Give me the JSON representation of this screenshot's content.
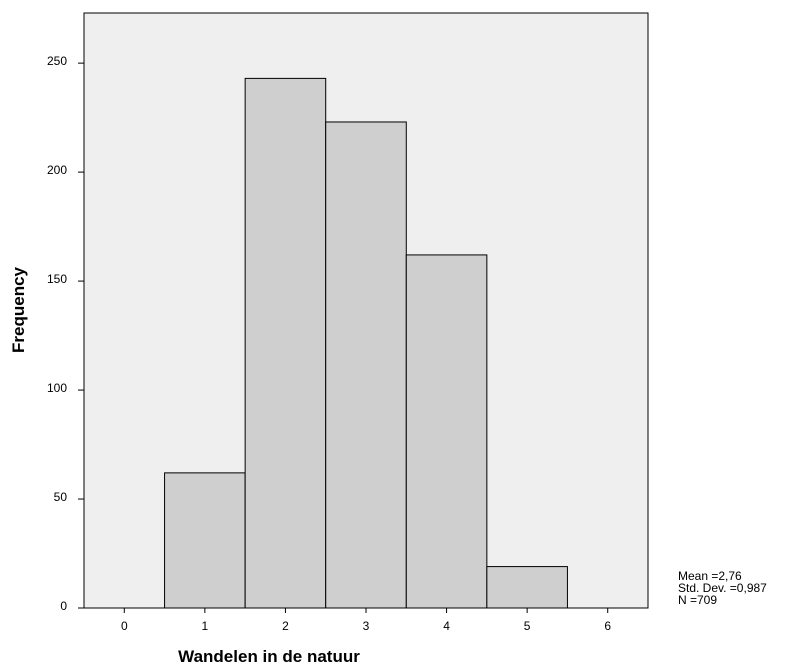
{
  "chart_data": {
    "type": "bar",
    "xlabel": "Wandelen in de natuur",
    "ylabel": "Frequency",
    "x_ticks": [
      "0",
      "1",
      "2",
      "3",
      "4",
      "5",
      "6"
    ],
    "y_ticks": [
      "0",
      "50",
      "100",
      "150",
      "200",
      "250"
    ],
    "xlim": [
      -0.5,
      6.5
    ],
    "ylim": [
      0,
      273
    ],
    "bins": [
      {
        "center": 1,
        "value": 62
      },
      {
        "center": 2,
        "value": 243
      },
      {
        "center": 3,
        "value": 223
      },
      {
        "center": 4,
        "value": 162
      },
      {
        "center": 5,
        "value": 19
      }
    ],
    "bin_width": 1,
    "colors": {
      "bar_fill": "#cfcfcf",
      "plot_bg": "#efefef",
      "bar_stroke": "#000000"
    }
  },
  "stats": {
    "mean": "Mean =2,76",
    "std": "Std. Dev. =0,987",
    "n": "N =709"
  }
}
